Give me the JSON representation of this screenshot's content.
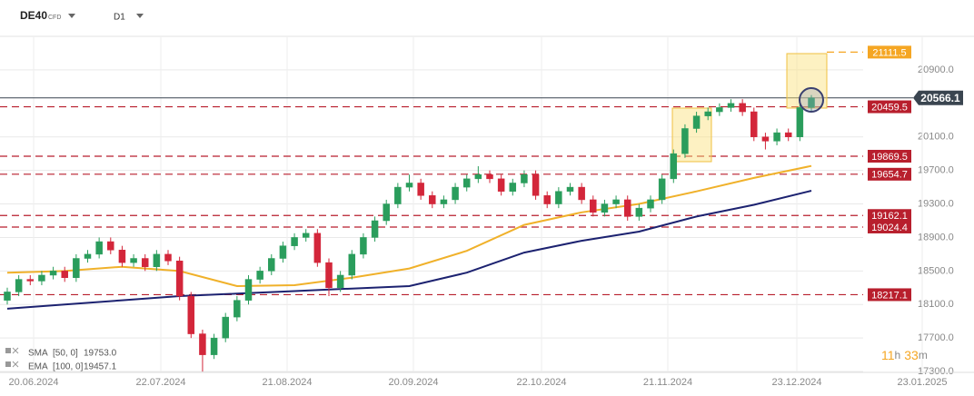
{
  "header": {
    "symbol": "DE40",
    "kind": "CFD",
    "timeframe": "D1"
  },
  "chart_data": {
    "type": "candlestick",
    "up_color": "#2a9d5c",
    "down_color": "#d3263a",
    "ylim": [
      17290,
      21300
    ],
    "yticks": [
      {
        "value": 17300,
        "label": "17300.0"
      },
      {
        "value": 17700,
        "label": "17700.0"
      },
      {
        "value": 18100,
        "label": "18100.0"
      },
      {
        "value": 18500,
        "label": "18500.0"
      },
      {
        "value": 18900,
        "label": "18900.0"
      },
      {
        "value": 19300,
        "label": "19300.0"
      },
      {
        "value": 19700,
        "label": "19700.0"
      },
      {
        "value": 20100,
        "label": "20100.0"
      },
      {
        "value": 20900,
        "label": "20900.0"
      }
    ],
    "grid": true,
    "x_labels": [
      "20.06.2024",
      "22.07.2024",
      "21.08.2024",
      "20.09.2024",
      "22.10.2024",
      "21.11.2024",
      "23.12.2024",
      "23.01.2025"
    ],
    "candles": [
      [
        18150,
        18300,
        18100,
        18250
      ],
      [
        18250,
        18450,
        18200,
        18400
      ],
      [
        18400,
        18450,
        18330,
        18380
      ],
      [
        18380,
        18500,
        18330,
        18450
      ],
      [
        18450,
        18550,
        18400,
        18500
      ],
      [
        18500,
        18550,
        18370,
        18420
      ],
      [
        18420,
        18700,
        18370,
        18650
      ],
      [
        18650,
        18750,
        18600,
        18700
      ],
      [
        18700,
        18900,
        18650,
        18850
      ],
      [
        18850,
        18900,
        18700,
        18750
      ],
      [
        18750,
        18800,
        18550,
        18600
      ],
      [
        18600,
        18700,
        18550,
        18650
      ],
      [
        18650,
        18700,
        18500,
        18550
      ],
      [
        18550,
        18750,
        18500,
        18700
      ],
      [
        18700,
        18750,
        18570,
        18620
      ],
      [
        18620,
        18670,
        18150,
        18200
      ],
      [
        18200,
        18250,
        17700,
        17750
      ],
      [
        17750,
        17800,
        17300,
        17500
      ],
      [
        17500,
        17750,
        17450,
        17700
      ],
      [
        17700,
        18000,
        17650,
        17950
      ],
      [
        17950,
        18200,
        17900,
        18150
      ],
      [
        18150,
        18450,
        18100,
        18400
      ],
      [
        18400,
        18550,
        18350,
        18500
      ],
      [
        18500,
        18700,
        18450,
        18650
      ],
      [
        18650,
        18850,
        18600,
        18800
      ],
      [
        18800,
        18950,
        18750,
        18900
      ],
      [
        18900,
        19000,
        18850,
        18950
      ],
      [
        18950,
        19000,
        18550,
        18600
      ],
      [
        18600,
        18650,
        18200,
        18300
      ],
      [
        18300,
        18500,
        18250,
        18450
      ],
      [
        18450,
        18750,
        18400,
        18700
      ],
      [
        18700,
        18950,
        18650,
        18900
      ],
      [
        18900,
        19150,
        18850,
        19100
      ],
      [
        19100,
        19350,
        19050,
        19300
      ],
      [
        19300,
        19550,
        19250,
        19500
      ],
      [
        19500,
        19650,
        19450,
        19550
      ],
      [
        19550,
        19600,
        19350,
        19400
      ],
      [
        19400,
        19450,
        19250,
        19300
      ],
      [
        19300,
        19400,
        19250,
        19350
      ],
      [
        19350,
        19550,
        19300,
        19500
      ],
      [
        19500,
        19650,
        19450,
        19600
      ],
      [
        19600,
        19750,
        19550,
        19650
      ],
      [
        19650,
        19700,
        19550,
        19600
      ],
      [
        19600,
        19650,
        19400,
        19450
      ],
      [
        19450,
        19600,
        19400,
        19550
      ],
      [
        19550,
        19700,
        19500,
        19650
      ],
      [
        19650,
        19700,
        19350,
        19400
      ],
      [
        19400,
        19450,
        19250,
        19300
      ],
      [
        19300,
        19500,
        19250,
        19450
      ],
      [
        19450,
        19550,
        19400,
        19500
      ],
      [
        19500,
        19550,
        19300,
        19350
      ],
      [
        19350,
        19400,
        19150,
        19200
      ],
      [
        19200,
        19350,
        19150,
        19300
      ],
      [
        19300,
        19400,
        19250,
        19350
      ],
      [
        19350,
        19400,
        19100,
        19150
      ],
      [
        19150,
        19300,
        19100,
        19250
      ],
      [
        19250,
        19400,
        19200,
        19350
      ],
      [
        19350,
        19650,
        19300,
        19600
      ],
      [
        19600,
        19950,
        19550,
        19900
      ],
      [
        19900,
        20250,
        19850,
        20200
      ],
      [
        20200,
        20400,
        20150,
        20350
      ],
      [
        20350,
        20450,
        20300,
        20400
      ],
      [
        20400,
        20500,
        20350,
        20450
      ],
      [
        20450,
        20550,
        20400,
        20500
      ],
      [
        20500,
        20550,
        20350,
        20400
      ],
      [
        20400,
        20450,
        20050,
        20100
      ],
      [
        20100,
        20150,
        19950,
        20050
      ],
      [
        20050,
        20200,
        20000,
        20150
      ],
      [
        20150,
        20200,
        20050,
        20100
      ],
      [
        20100,
        20500,
        20050,
        20450
      ],
      [
        20450,
        20600,
        20400,
        20566.1
      ]
    ],
    "series": [
      {
        "name": "SMA",
        "params": "[50, 0]",
        "last": {
          "value": 19753,
          "label": "19753.0"
        },
        "color": "#f0b12a",
        "x": [
          0,
          5,
          10,
          15,
          20,
          25,
          30,
          35,
          40,
          45,
          50,
          55,
          60,
          65,
          70
        ],
        "values": [
          18480,
          18500,
          18550,
          18500,
          18320,
          18330,
          18420,
          18530,
          18740,
          19050,
          19200,
          19300,
          19450,
          19610,
          19753
        ]
      },
      {
        "name": "EMA",
        "params": "[100, 0]",
        "last": 19457.1,
        "color": "#1c2270",
        "x": [
          0,
          5,
          10,
          15,
          20,
          25,
          30,
          35,
          40,
          45,
          50,
          55,
          60,
          65,
          70
        ],
        "values": [
          18050,
          18100,
          18150,
          18200,
          18230,
          18260,
          18290,
          18320,
          18480,
          18720,
          18860,
          18970,
          19150,
          19290,
          19457.1
        ]
      }
    ],
    "levels": [
      {
        "value": 21111.5,
        "color": "#f5a623"
      },
      {
        "value": 20459.5,
        "color": "#b81f2d"
      },
      {
        "value": 19869.5,
        "color": "#b81f2d"
      },
      {
        "value": 19654.7,
        "color": "#b81f2d"
      },
      {
        "value": 19162.1,
        "color": "#b81f2d"
      },
      {
        "value": 19024.4,
        "color": "#b81f2d"
      },
      {
        "value": 18217.1,
        "color": "#b81f2d"
      }
    ],
    "current_price": 20566.1
  },
  "timer": {
    "hours": "11",
    "h": "h",
    "minutes": "33",
    "m": "m"
  }
}
